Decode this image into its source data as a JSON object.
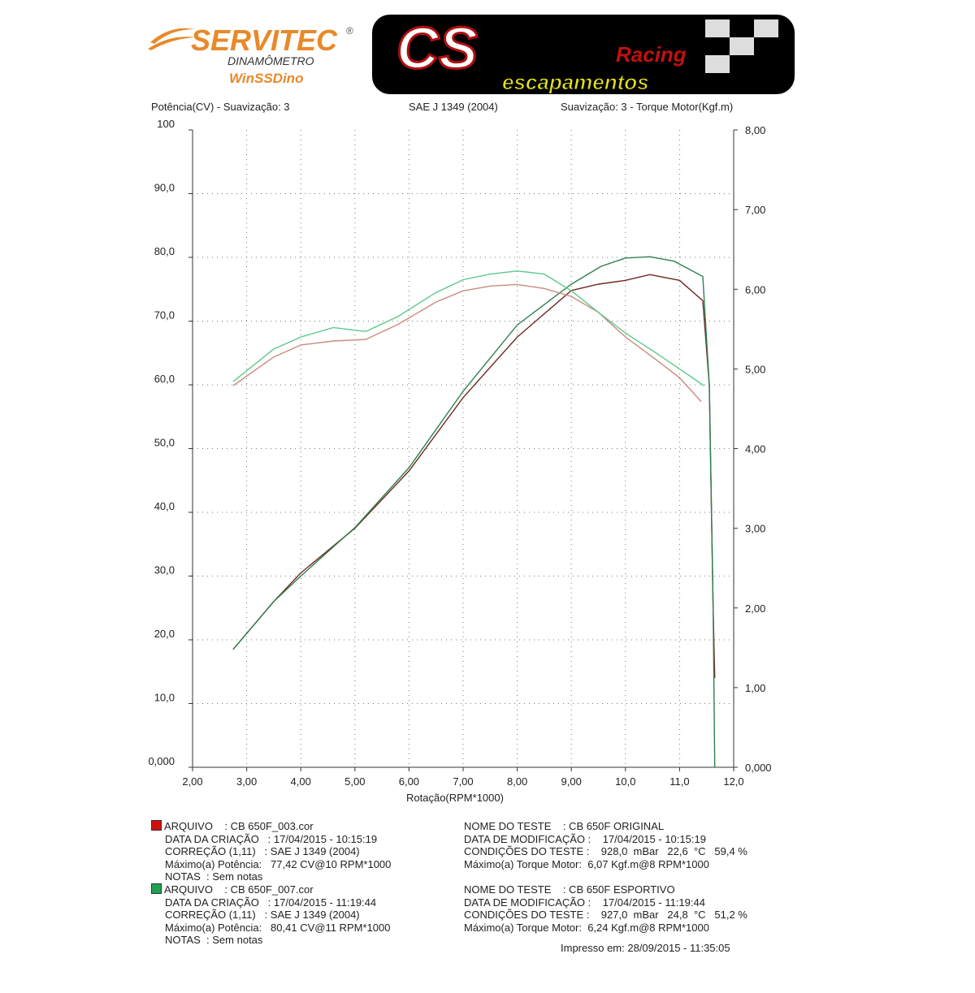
{
  "logos": {
    "servitec": {
      "name": "SERVITEC",
      "mark": "®",
      "line1": "DINAMÔMETRO",
      "line2": "WinSSDino"
    },
    "cs": {
      "name": "CS",
      "script": "Racing",
      "sub": "escapamentos"
    }
  },
  "header": {
    "left": "Potência(CV) - Suavização: 3",
    "center": "SAE J 1349 (2004)",
    "right": "Suavização: 3 - Torque Motor(Kgf.m)"
  },
  "chart_data": {
    "type": "line",
    "xlabel": "Rotação(RPM*1000)",
    "ylabel": "Potência(CV) - Suavização: 3",
    "y2label": "Suavização: 3 - Torque Motor(Kgf.m)",
    "xlim": [
      2,
      12
    ],
    "ylim": [
      0,
      100
    ],
    "y2lim": [
      0,
      8
    ],
    "grid": true,
    "x_ticks": [
      "2,00",
      "3,00",
      "4,00",
      "5,00",
      "6,00",
      "7,00",
      "8,00",
      "9,00",
      "10,0",
      "11,0",
      "12,0"
    ],
    "y_ticks": [
      "0,000",
      "10,0",
      "20,0",
      "30,0",
      "40,0",
      "50,0",
      "60,0",
      "70,0",
      "80,0",
      "90,0",
      "100"
    ],
    "y2_ticks": [
      "0,000",
      "1,00",
      "2,00",
      "3,00",
      "4,00",
      "5,00",
      "6,00",
      "7,00",
      "8,00"
    ],
    "series": [
      {
        "name": "CB 650F_003.cor",
        "quantity": "power",
        "axis": "left",
        "color": "#6e2a22",
        "x": [
          2.75,
          3.5,
          4.0,
          5.0,
          6.0,
          7.0,
          8.0,
          9.0,
          9.5,
          10.0,
          10.45,
          11.0,
          11.43,
          11.55,
          11.62,
          11.65
        ],
        "y": [
          18.5,
          26,
          30.5,
          37.5,
          46.5,
          58,
          67.5,
          74.8,
          75.8,
          76.4,
          77.3,
          76.4,
          73.2,
          60,
          25,
          14
        ]
      },
      {
        "name": "CB 650F_007.cor",
        "quantity": "power",
        "axis": "left",
        "color": "#2f8050",
        "x": [
          2.75,
          3.5,
          4.0,
          5.0,
          6.0,
          7.0,
          8.0,
          9.0,
          9.55,
          10.0,
          10.45,
          10.9,
          11.43,
          11.55,
          11.62,
          11.65
        ],
        "y": [
          18.5,
          26,
          30,
          37.6,
          47,
          59,
          69.4,
          75.8,
          78.6,
          79.9,
          80.1,
          79.4,
          77,
          60,
          25,
          0
        ]
      },
      {
        "name": "CB 650F_003.cor",
        "quantity": "torque",
        "axis": "right",
        "color": "#c98a80",
        "x": [
          2.75,
          3.5,
          4.0,
          4.6,
          5.2,
          5.8,
          6.5,
          7.0,
          7.5,
          8.0,
          8.5,
          9.0,
          9.5,
          10.0,
          10.5,
          11.0,
          11.4
        ],
        "y": [
          4.79,
          5.15,
          5.3,
          5.35,
          5.37,
          5.56,
          5.84,
          5.98,
          6.04,
          6.06,
          6.01,
          5.91,
          5.71,
          5.4,
          5.15,
          4.89,
          4.59
        ]
      },
      {
        "name": "CB 650F_007.cor",
        "quantity": "torque",
        "axis": "right",
        "color": "#5cc98a",
        "x": [
          2.75,
          3.5,
          4.0,
          4.6,
          5.2,
          5.8,
          6.5,
          7.0,
          7.5,
          8.0,
          8.5,
          9.0,
          9.5,
          10.0,
          10.5,
          11.0,
          11.45
        ],
        "y": [
          4.84,
          5.25,
          5.4,
          5.52,
          5.47,
          5.66,
          5.96,
          6.12,
          6.19,
          6.23,
          6.19,
          5.98,
          5.71,
          5.45,
          5.23,
          5.0,
          4.79
        ]
      }
    ]
  },
  "legend": [
    {
      "color": "#d01010",
      "left": [
        "ARQUIVO    : CB 650F_003.cor",
        "DATA DA CRIAÇÃO   : 17/04/2015 - 10:15:19",
        "CORREÇÃO (1,11)   : SAE J 1349 (2004)",
        "Máximo(a) Potência:   77,42 CV@10 RPM*1000",
        "NOTAS  : Sem notas"
      ],
      "right": [
        "NOME DO TESTE    : CB 650F ORIGINAL",
        "DATA DE MODIFICAÇÃO :    17/04/2015 - 10:15:19",
        "CONDIÇÕES DO TESTE :    928,0  mBar   22,6  °C   59,4 %",
        "Máximo(a) Torque Motor:  6,07 Kgf.m@8 RPM*1000"
      ]
    },
    {
      "color": "#20a050",
      "left": [
        "ARQUIVO    : CB 650F_007.cor",
        "DATA DA CRIAÇÃO   : 17/04/2015 - 11:19:44",
        "CORREÇÃO (1,11)   : SAE J 1349 (2004)",
        "Máximo(a) Potência:   80,41 CV@11 RPM*1000",
        "NOTAS  : Sem notas"
      ],
      "right": [
        "NOME DO TESTE    : CB 650F ESPORTIVO",
        "DATA DE MODIFICAÇÃO :    17/04/2015 - 11:19:44",
        "CONDIÇÕES DO TESTE :    927,0  mBar   24,8  °C   51,2 %",
        "Máximo(a) Torque Motor:  6,24 Kgf.m@8 RPM*1000"
      ]
    }
  ],
  "footer": {
    "printed": "Impresso em: 28/09/2015 - 11:35:05"
  }
}
